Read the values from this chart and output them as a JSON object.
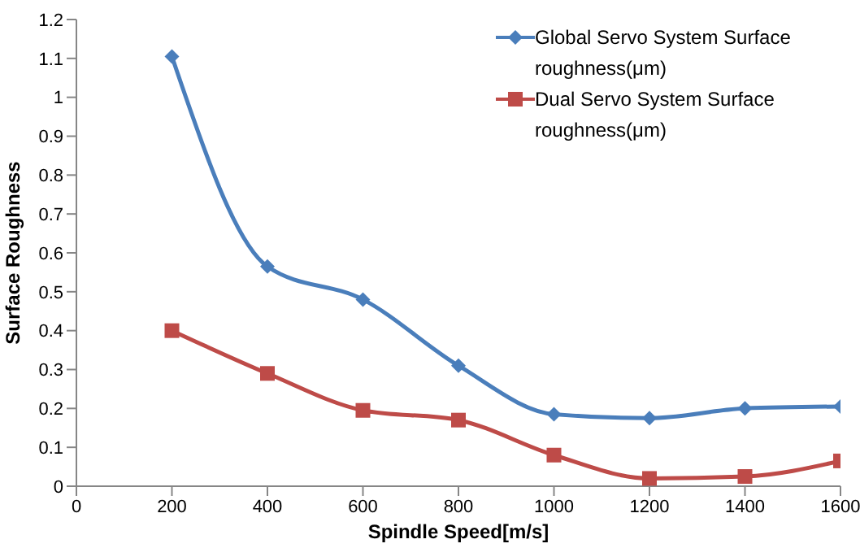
{
  "chart_data": {
    "type": "line",
    "xlabel": "Spindle Speed[m/s]",
    "ylabel": "Surface Roughness",
    "x": [
      200,
      400,
      600,
      800,
      1000,
      1200,
      1400,
      1600
    ],
    "series": [
      {
        "name": "Global Servo System Surface roughness(μm)",
        "color": "#4a7ebb",
        "marker": "diamond",
        "values": [
          1.105,
          0.565,
          0.48,
          0.31,
          0.185,
          0.175,
          0.2,
          0.205
        ]
      },
      {
        "name": "Dual Servo System Surface roughness(μm)",
        "color": "#be4b48",
        "marker": "square",
        "values": [
          0.4,
          0.29,
          0.195,
          0.17,
          0.08,
          0.02,
          0.025,
          0.065
        ]
      }
    ],
    "xlim": [
      0,
      1600
    ],
    "xticks": [
      0,
      200,
      400,
      600,
      800,
      1000,
      1200,
      1400,
      1600
    ],
    "ylim": [
      0,
      1.2
    ],
    "yticks": [
      0,
      0.1,
      0.2,
      0.3,
      0.4,
      0.5,
      0.6,
      0.7,
      0.8,
      0.9,
      1,
      1.1,
      1.2
    ],
    "grid": false,
    "legend": "top right",
    "line_style": "solid"
  }
}
